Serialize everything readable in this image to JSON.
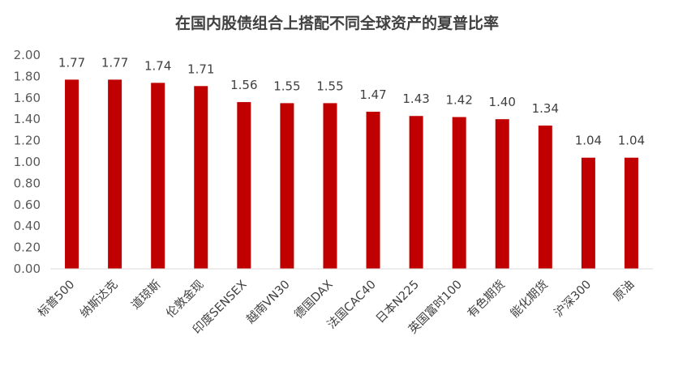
{
  "chart_data": {
    "type": "bar",
    "title": "在国内股债组合上搭配不同全球资产的夏普比率",
    "categories": [
      "标普500",
      "纳斯达克",
      "道琼斯",
      "伦敦金现",
      "印度SENSEX",
      "越南VN30",
      "德国DAX",
      "法国CAC40",
      "日本N225",
      "英国富时100",
      "有色期货",
      "能化期货",
      "沪深300",
      "原油"
    ],
    "values": [
      1.77,
      1.77,
      1.74,
      1.71,
      1.56,
      1.55,
      1.55,
      1.47,
      1.43,
      1.42,
      1.4,
      1.34,
      1.04,
      1.04
    ],
    "value_labels": [
      "1.77",
      "1.77",
      "1.74",
      "1.71",
      "1.56",
      "1.55",
      "1.55",
      "1.47",
      "1.43",
      "1.42",
      "1.40",
      "1.34",
      "1.04",
      "1.04"
    ],
    "yticks": [
      "0.00",
      "0.20",
      "0.40",
      "0.60",
      "0.80",
      "1.00",
      "1.20",
      "1.40",
      "1.60",
      "1.80",
      "2.00"
    ],
    "ylim": [
      0,
      2
    ],
    "grid": false,
    "legend": "none",
    "bar_color": "#C00000",
    "xlabel": "",
    "ylabel": ""
  }
}
